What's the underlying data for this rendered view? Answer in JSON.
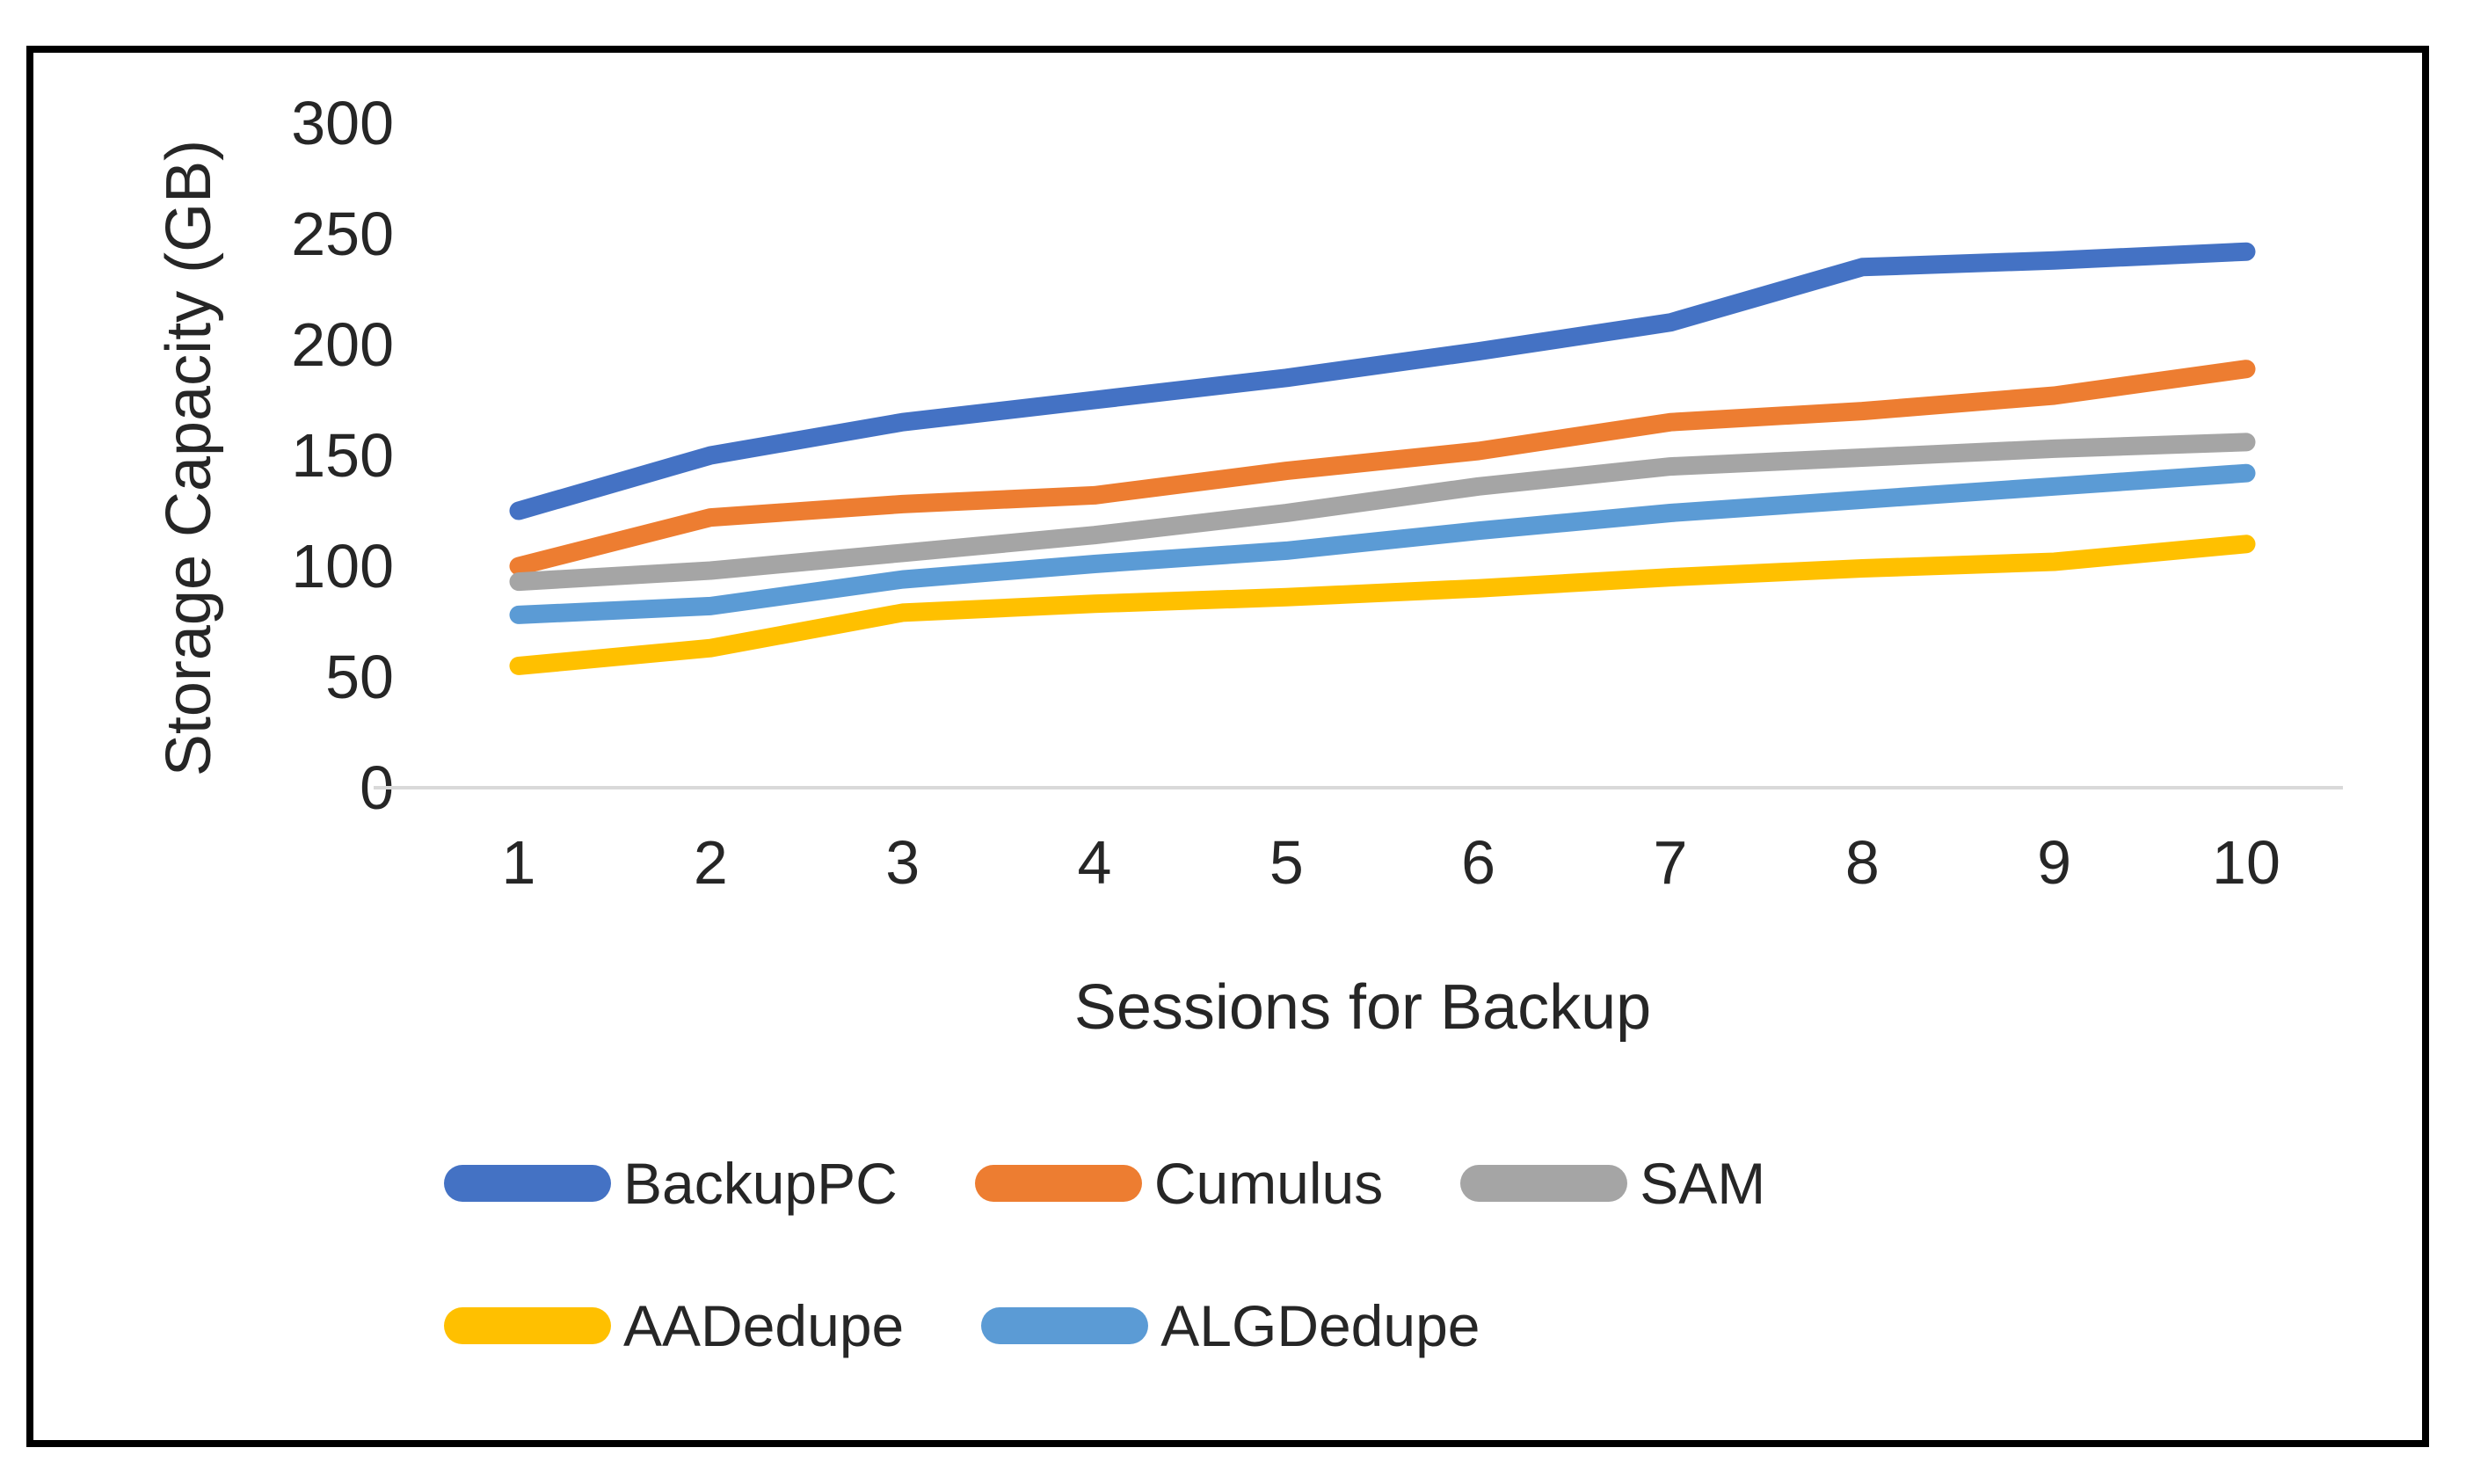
{
  "chart_data": {
    "type": "line",
    "title": "",
    "xlabel": "Sessions for Backup",
    "ylabel": "Storage Capacity (GB)",
    "categories": [
      "1",
      "2",
      "3",
      "4",
      "5",
      "6",
      "7",
      "8",
      "9",
      "10"
    ],
    "yticks": [
      0,
      50,
      100,
      150,
      200,
      250,
      300
    ],
    "ylim": [
      0,
      300
    ],
    "grid": false,
    "axis_line_color": "#d9d9d9",
    "text_color": "#262626",
    "series": [
      {
        "name": "BackupPC",
        "color": "#4472c4",
        "values": [
          125,
          150,
          165,
          175,
          185,
          197,
          210,
          235,
          238,
          242
        ]
      },
      {
        "name": "Cumulus",
        "color": "#ed7d31",
        "values": [
          100,
          122,
          128,
          132,
          143,
          152,
          165,
          170,
          177,
          189
        ]
      },
      {
        "name": "SAM",
        "color": "#a5a5a5",
        "values": [
          93,
          98,
          106,
          114,
          124,
          136,
          145,
          149,
          153,
          156
        ]
      },
      {
        "name": "AADedupe",
        "color": "#ffc000",
        "values": [
          55,
          63,
          79,
          83,
          86,
          90,
          95,
          99,
          102,
          110
        ]
      },
      {
        "name": "ALGDedupe",
        "color": "#5b9bd5",
        "values": [
          78,
          82,
          94,
          101,
          107,
          116,
          124,
          130,
          136,
          142
        ]
      }
    ],
    "legend": {
      "position": "bottom",
      "rows": [
        [
          "BackupPC",
          "Cumulus",
          "SAM"
        ],
        [
          "AADedupe",
          "ALGDedupe"
        ]
      ]
    }
  }
}
